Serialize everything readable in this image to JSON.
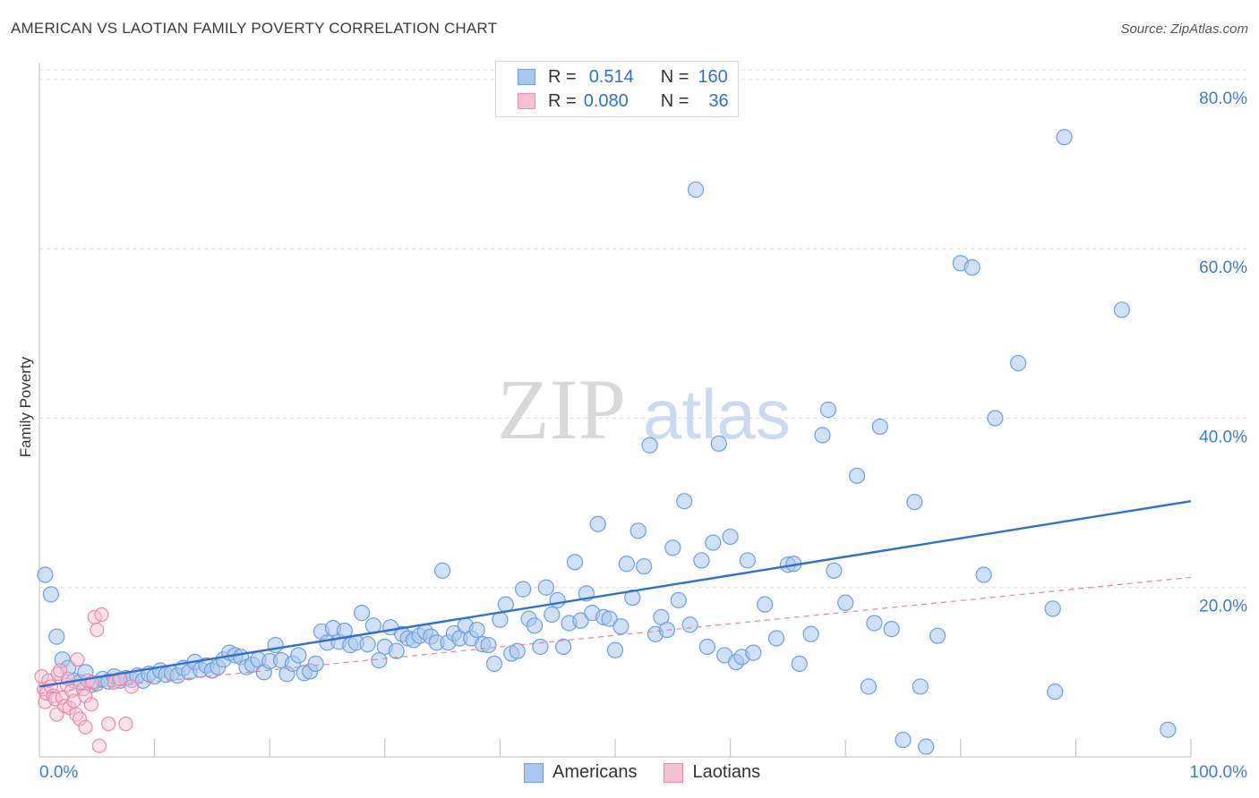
{
  "title": "AMERICAN VS LAOTIAN FAMILY POVERTY CORRELATION CHART",
  "source": "Source: ZipAtlas.com",
  "watermark": {
    "zip": "ZIP",
    "atlas": "atlas"
  },
  "legend": {
    "rows": [
      {
        "r_label": "R =",
        "r_value": "0.514",
        "n_label": "N =",
        "n_value": "160",
        "color": "#a9c8f0",
        "border": "#6a9fe0"
      },
      {
        "r_label": "R =",
        "r_value": "0.080",
        "n_label": "N =",
        "n_value": "36",
        "color": "#f8c0d2",
        "border": "#e889a8"
      }
    ]
  },
  "bottom_legend": [
    {
      "label": "Americans",
      "color": "#a9c8f0",
      "border": "#6a9fe0"
    },
    {
      "label": "Laotians",
      "color": "#f8c0d2",
      "border": "#e889a8"
    }
  ],
  "chart_data": {
    "type": "scatter",
    "title": "AMERICAN VS LAOTIAN FAMILY POVERTY CORRELATION CHART",
    "xlabel": "",
    "ylabel": "Family Poverty",
    "xlim": [
      0,
      100
    ],
    "ylim": [
      0,
      82
    ],
    "x_tick_labels": [
      "0.0%",
      "100.0%"
    ],
    "y_ticks": [
      20,
      40,
      60,
      80
    ],
    "y_tick_labels": [
      "20.0%",
      "40.0%",
      "60.0%",
      "80.0%"
    ],
    "grid": true,
    "colors": {
      "Americans": "#6a9fe0",
      "Laotians": "#e889a8",
      "trend_blue": "#2f6fd0",
      "trend_pink": "#e77fa0"
    },
    "series": [
      {
        "name": "Americans",
        "points": [
          [
            0.5,
            21.5
          ],
          [
            1,
            19.2
          ],
          [
            1.5,
            14.2
          ],
          [
            2,
            11.5
          ],
          [
            2.5,
            10.5
          ],
          [
            3,
            9.0
          ],
          [
            3.5,
            8.8
          ],
          [
            4,
            10
          ],
          [
            4.5,
            8.5
          ],
          [
            5,
            8.7
          ],
          [
            5.5,
            9.2
          ],
          [
            6,
            8.9
          ],
          [
            6.5,
            9.5
          ],
          [
            7,
            9.0
          ],
          [
            7.5,
            9.3
          ],
          [
            8,
            9.1
          ],
          [
            8.5,
            9.6
          ],
          [
            9,
            9.0
          ],
          [
            9.5,
            9.8
          ],
          [
            10,
            9.5
          ],
          [
            10.5,
            10.2
          ],
          [
            11,
            9.7
          ],
          [
            11.5,
            9.9
          ],
          [
            12,
            9.6
          ],
          [
            12.5,
            10.5
          ],
          [
            13,
            10.0
          ],
          [
            13.5,
            11.2
          ],
          [
            14,
            10.3
          ],
          [
            14.5,
            10.8
          ],
          [
            15,
            10.2
          ],
          [
            15.5,
            10.6
          ],
          [
            16,
            11.5
          ],
          [
            16.5,
            12.3
          ],
          [
            17,
            12.0
          ],
          [
            17.5,
            11.8
          ],
          [
            18,
            10.6
          ],
          [
            18.5,
            10.9
          ],
          [
            19,
            11.5
          ],
          [
            19.5,
            10.0
          ],
          [
            20,
            11.3
          ],
          [
            20.5,
            13.2
          ],
          [
            21,
            11.4
          ],
          [
            21.5,
            9.8
          ],
          [
            22,
            11.0
          ],
          [
            22.5,
            12.0
          ],
          [
            23,
            9.9
          ],
          [
            23.5,
            10.1
          ],
          [
            24,
            11.0
          ],
          [
            24.5,
            14.8
          ],
          [
            25,
            13.5
          ],
          [
            25.5,
            15.2
          ],
          [
            26,
            13.6
          ],
          [
            26.5,
            14.9
          ],
          [
            27,
            13.2
          ],
          [
            27.5,
            13.5
          ],
          [
            28,
            17.0
          ],
          [
            28.5,
            13.3
          ],
          [
            29,
            15.5
          ],
          [
            29.5,
            11.4
          ],
          [
            30,
            13.0
          ],
          [
            30.5,
            15.3
          ],
          [
            31,
            12.5
          ],
          [
            31.5,
            14.5
          ],
          [
            32,
            14.0
          ],
          [
            32.5,
            13.8
          ],
          [
            33,
            14.3
          ],
          [
            33.5,
            14.8
          ],
          [
            34,
            14.2
          ],
          [
            34.5,
            13.5
          ],
          [
            35,
            22.0
          ],
          [
            35.5,
            13.5
          ],
          [
            36,
            14.6
          ],
          [
            36.5,
            14.0
          ],
          [
            37,
            15.5
          ],
          [
            37.5,
            14.0
          ],
          [
            38,
            15.0
          ],
          [
            38.5,
            13.3
          ],
          [
            39,
            13.2
          ],
          [
            39.5,
            11.0
          ],
          [
            40,
            16.2
          ],
          [
            40.5,
            18.0
          ],
          [
            41,
            12.2
          ],
          [
            41.5,
            12.5
          ],
          [
            42,
            19.8
          ],
          [
            42.5,
            16.3
          ],
          [
            43,
            15.5
          ],
          [
            43.5,
            13.0
          ],
          [
            44,
            20.0
          ],
          [
            44.5,
            16.8
          ],
          [
            45,
            18.5
          ],
          [
            45.5,
            13.0
          ],
          [
            46,
            15.8
          ],
          [
            46.5,
            23.0
          ],
          [
            47,
            16.1
          ],
          [
            47.5,
            19.3
          ],
          [
            48,
            17.0
          ],
          [
            48.5,
            27.5
          ],
          [
            49,
            16.5
          ],
          [
            49.5,
            16.3
          ],
          [
            50,
            12.6
          ],
          [
            50.5,
            15.4
          ],
          [
            51,
            22.8
          ],
          [
            51.5,
            18.8
          ],
          [
            52,
            26.7
          ],
          [
            52.5,
            22.5
          ],
          [
            53,
            36.8
          ],
          [
            53.5,
            14.5
          ],
          [
            54,
            16.5
          ],
          [
            54.5,
            15.0
          ],
          [
            55,
            24.7
          ],
          [
            55.5,
            18.5
          ],
          [
            56,
            30.2
          ],
          [
            56.5,
            15.6
          ],
          [
            57,
            67.0
          ],
          [
            57.5,
            23.2
          ],
          [
            58,
            13.0
          ],
          [
            58.5,
            25.3
          ],
          [
            59,
            37.0
          ],
          [
            59.5,
            12.0
          ],
          [
            60,
            26.0
          ],
          [
            60.5,
            11.2
          ],
          [
            61,
            11.8
          ],
          [
            61.5,
            23.2
          ],
          [
            62,
            12.3
          ],
          [
            63,
            18.0
          ],
          [
            64,
            14.0
          ],
          [
            65,
            22.7
          ],
          [
            65.5,
            22.8
          ],
          [
            66,
            11.0
          ],
          [
            67,
            14.5
          ],
          [
            68,
            38.0
          ],
          [
            68.5,
            41.0
          ],
          [
            69,
            22.0
          ],
          [
            70,
            18.2
          ],
          [
            71,
            33.2
          ],
          [
            72,
            8.3
          ],
          [
            72.5,
            15.8
          ],
          [
            73,
            39.0
          ],
          [
            74,
            15.1
          ],
          [
            75,
            2.0
          ],
          [
            76,
            30.1
          ],
          [
            76.5,
            8.3
          ],
          [
            77,
            1.2
          ],
          [
            78,
            14.3
          ],
          [
            80,
            58.3
          ],
          [
            81,
            57.8
          ],
          [
            82,
            21.5
          ],
          [
            83,
            40.0
          ],
          [
            85,
            46.5
          ],
          [
            88,
            17.5
          ],
          [
            88.2,
            7.7
          ],
          [
            89,
            73.2
          ],
          [
            94,
            52.8
          ],
          [
            98,
            3.2
          ]
        ]
      },
      {
        "name": "Laotians",
        "points": [
          [
            0.2,
            9.5
          ],
          [
            0.4,
            8.0
          ],
          [
            0.5,
            6.5
          ],
          [
            0.6,
            7.5
          ],
          [
            0.8,
            9.0
          ],
          [
            1,
            8.3
          ],
          [
            1.2,
            7.2
          ],
          [
            1.4,
            6.8
          ],
          [
            1.5,
            5.0
          ],
          [
            1.6,
            9.8
          ],
          [
            1.8,
            10.2
          ],
          [
            2,
            7.0
          ],
          [
            2.2,
            6.0
          ],
          [
            2.4,
            8.5
          ],
          [
            2.5,
            9.2
          ],
          [
            2.6,
            5.8
          ],
          [
            2.8,
            7.8
          ],
          [
            3,
            6.6
          ],
          [
            3.2,
            5.0
          ],
          [
            3.3,
            11.5
          ],
          [
            3.5,
            4.5
          ],
          [
            3.8,
            8.0
          ],
          [
            4,
            3.5
          ],
          [
            4,
            7.2
          ],
          [
            4.2,
            9.0
          ],
          [
            4.5,
            6.2
          ],
          [
            4.6,
            8.8
          ],
          [
            4.8,
            16.5
          ],
          [
            5,
            15.0
          ],
          [
            5.2,
            1.3
          ],
          [
            5.4,
            16.8
          ],
          [
            6,
            3.9
          ],
          [
            6.5,
            8.8
          ],
          [
            7,
            9.2
          ],
          [
            7.5,
            3.9
          ],
          [
            8,
            8.3
          ]
        ]
      }
    ],
    "trend_lines": [
      {
        "name": "Americans",
        "from": [
          0,
          8.3
        ],
        "to": [
          100,
          30.2
        ],
        "style": "solid"
      },
      {
        "name": "Laotians",
        "from": [
          0,
          7.5
        ],
        "to": [
          100,
          21.2
        ],
        "style": "dashed"
      }
    ]
  }
}
